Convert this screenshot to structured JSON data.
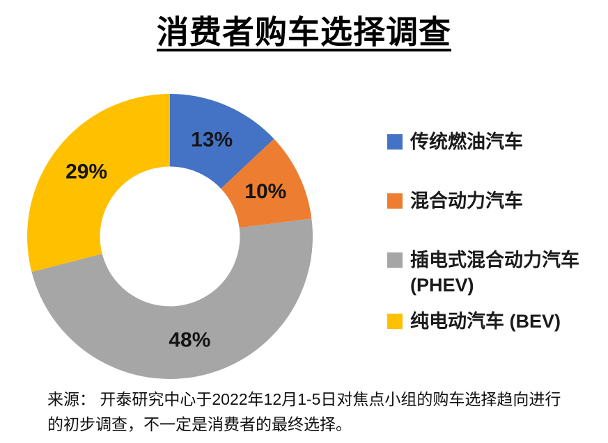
{
  "title": "消费者购车选择调查",
  "chart_data": {
    "type": "pie",
    "subtype": "donut",
    "title": "消费者购车选择调查",
    "categories": [
      "传统燃油汽车",
      "混合动力汽车",
      "插电式混合动力汽车 (PHEV)",
      "纯电动汽车 (BEV)"
    ],
    "values": [
      13,
      10,
      48,
      29
    ],
    "unit": "%",
    "data_labels": [
      "13%",
      "10%",
      "48%",
      "29%"
    ],
    "colors": [
      "#4472C4",
      "#ED7D31",
      "#A6A6A6",
      "#FFC000"
    ],
    "label_color": "#151515",
    "start_angle_deg": 0,
    "direction": "clockwise",
    "inner_radius_ratio": 0.49,
    "legend_position": "right",
    "grid": false
  },
  "source_note": {
    "lines": [
      "来源： 开泰研究中心于2022年12月1-5日对焦点小组的购车选择趋向进行",
      "的初步调查，不一定是消费者的最终选择。"
    ]
  }
}
